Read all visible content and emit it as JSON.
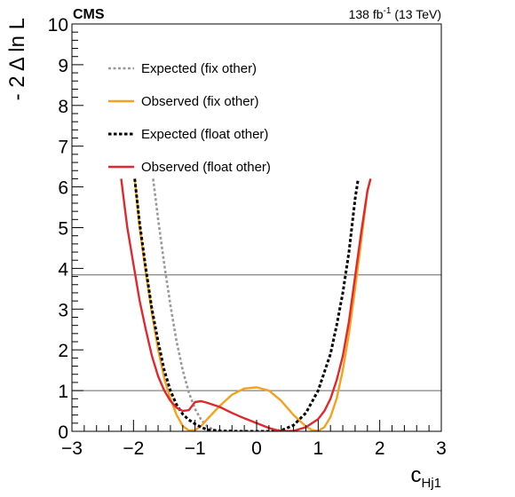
{
  "chart_data": {
    "type": "line",
    "title": "",
    "experiment_label": "CMS",
    "lumi_label": {
      "value": "138 fb",
      "superscript": "-1",
      "energy": " (13 TeV)"
    },
    "xlabel": {
      "main": "c",
      "sub": "Hj1"
    },
    "ylabel": "- 2 Δ ln L",
    "xlim": [
      -3,
      3
    ],
    "ylim": [
      0,
      10
    ],
    "x_ticks": [
      -3,
      -2,
      -1,
      0,
      1,
      2,
      3
    ],
    "y_ticks": [
      0,
      1,
      2,
      3,
      4,
      5,
      6,
      7,
      8,
      9,
      10
    ],
    "reference_lines": [
      1,
      3.84
    ],
    "legend_position": "top-left",
    "series": [
      {
        "name": "Expected (fix other)",
        "color": "#999999",
        "style": "dotted",
        "points": [
          [
            -1.68,
            6.2
          ],
          [
            -1.6,
            5.2
          ],
          [
            -1.5,
            4.1
          ],
          [
            -1.4,
            3.1
          ],
          [
            -1.3,
            2.2
          ],
          [
            -1.2,
            1.5
          ],
          [
            -1.1,
            0.95
          ],
          [
            -1.0,
            0.55
          ],
          [
            -0.9,
            0.28
          ],
          [
            -0.8,
            0.12
          ],
          [
            -0.7,
            0.04
          ],
          [
            -0.6,
            0.005
          ],
          [
            -0.5,
            0.0
          ],
          [
            -0.4,
            0.02
          ]
        ]
      },
      {
        "name": "Observed (fix other)",
        "color": "#f5a11c",
        "style": "solid",
        "points": [
          [
            -1.98,
            6.2
          ],
          [
            -1.9,
            5.0
          ],
          [
            -1.8,
            3.9
          ],
          [
            -1.7,
            2.9
          ],
          [
            -1.6,
            2.0
          ],
          [
            -1.5,
            1.3
          ],
          [
            -1.4,
            0.8
          ],
          [
            -1.3,
            0.4
          ],
          [
            -1.2,
            0.13
          ],
          [
            -1.1,
            0.02
          ],
          [
            -1.0,
            0.03
          ],
          [
            -0.9,
            0.13
          ],
          [
            -0.8,
            0.3
          ],
          [
            -0.6,
            0.62
          ],
          [
            -0.4,
            0.9
          ],
          [
            -0.2,
            1.05
          ],
          [
            0.0,
            1.08
          ],
          [
            0.2,
            1.0
          ],
          [
            0.4,
            0.75
          ],
          [
            0.6,
            0.4
          ],
          [
            0.8,
            0.12
          ],
          [
            0.9,
            0.03
          ],
          [
            1.0,
            0.01
          ],
          [
            1.1,
            0.1
          ],
          [
            1.2,
            0.35
          ],
          [
            1.3,
            0.8
          ],
          [
            1.4,
            1.5
          ],
          [
            1.5,
            2.4
          ],
          [
            1.6,
            3.5
          ],
          [
            1.7,
            4.7
          ],
          [
            1.8,
            5.9
          ],
          [
            1.85,
            6.2
          ]
        ]
      },
      {
        "name": "Expected (float other)",
        "color": "#000000",
        "style": "dotted",
        "points": [
          [
            -1.98,
            6.2
          ],
          [
            -1.9,
            5.1
          ],
          [
            -1.8,
            4.0
          ],
          [
            -1.7,
            3.0
          ],
          [
            -1.6,
            2.2
          ],
          [
            -1.5,
            1.5
          ],
          [
            -1.4,
            1.0
          ],
          [
            -1.3,
            0.65
          ],
          [
            -1.2,
            0.42
          ],
          [
            -1.1,
            0.28
          ],
          [
            -1.0,
            0.18
          ],
          [
            -0.9,
            0.1
          ],
          [
            -0.8,
            0.04
          ],
          [
            -0.6,
            0.01
          ],
          [
            -0.4,
            0.005
          ],
          [
            -0.2,
            0.0
          ],
          [
            0.0,
            0.0
          ],
          [
            0.2,
            0.0
          ],
          [
            0.4,
            0.02
          ],
          [
            0.6,
            0.15
          ],
          [
            0.8,
            0.45
          ],
          [
            1.0,
            1.0
          ],
          [
            1.2,
            1.9
          ],
          [
            1.3,
            2.6
          ],
          [
            1.4,
            3.4
          ],
          [
            1.5,
            4.4
          ],
          [
            1.6,
            5.7
          ],
          [
            1.65,
            6.2
          ]
        ]
      },
      {
        "name": "Observed (float other)",
        "color": "#e0282d",
        "style": "solid",
        "points": [
          [
            -2.2,
            6.2
          ],
          [
            -2.15,
            5.6
          ],
          [
            -2.1,
            5.0
          ],
          [
            -2.0,
            4.1
          ],
          [
            -1.9,
            3.2
          ],
          [
            -1.8,
            2.5
          ],
          [
            -1.7,
            1.85
          ],
          [
            -1.6,
            1.35
          ],
          [
            -1.5,
            1.0
          ],
          [
            -1.4,
            0.75
          ],
          [
            -1.3,
            0.58
          ],
          [
            -1.2,
            0.5
          ],
          [
            -1.1,
            0.52
          ],
          [
            -1.0,
            0.72
          ],
          [
            -0.9,
            0.74
          ],
          [
            -0.8,
            0.7
          ],
          [
            -0.6,
            0.6
          ],
          [
            -0.4,
            0.45
          ],
          [
            -0.2,
            0.32
          ],
          [
            0.0,
            0.2
          ],
          [
            0.2,
            0.08
          ],
          [
            0.4,
            0.0
          ],
          [
            0.6,
            0.01
          ],
          [
            0.8,
            0.1
          ],
          [
            1.0,
            0.3
          ],
          [
            1.1,
            0.5
          ],
          [
            1.2,
            0.8
          ],
          [
            1.3,
            1.25
          ],
          [
            1.4,
            1.85
          ],
          [
            1.5,
            2.7
          ],
          [
            1.6,
            3.8
          ],
          [
            1.7,
            4.9
          ],
          [
            1.8,
            5.9
          ],
          [
            1.85,
            6.2
          ]
        ]
      }
    ]
  }
}
